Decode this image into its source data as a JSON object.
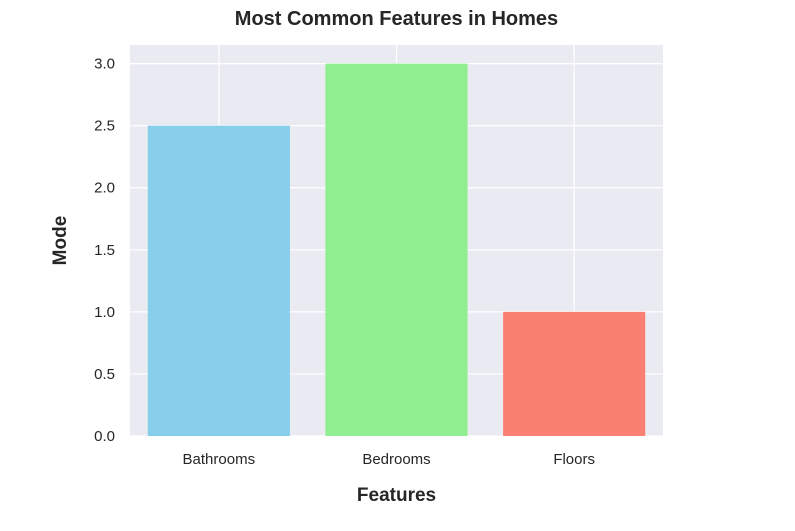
{
  "chart_data": {
    "type": "bar",
    "title": "Most Common Features in Homes",
    "xlabel": "Features",
    "ylabel": "Mode",
    "categories": [
      "Bathrooms",
      "Bedrooms",
      "Floors"
    ],
    "values": [
      2.5,
      3.0,
      1.0
    ],
    "colors": [
      "#87CEEB",
      "#90EE90",
      "#FA8072"
    ],
    "ylim": [
      0,
      3.15
    ],
    "yticks": [
      "0.0",
      "0.5",
      "1.0",
      "1.5",
      "2.0",
      "2.5",
      "3.0"
    ],
    "grid": true,
    "background": "#EAEAF2",
    "grid_color": "#FFFFFF"
  }
}
